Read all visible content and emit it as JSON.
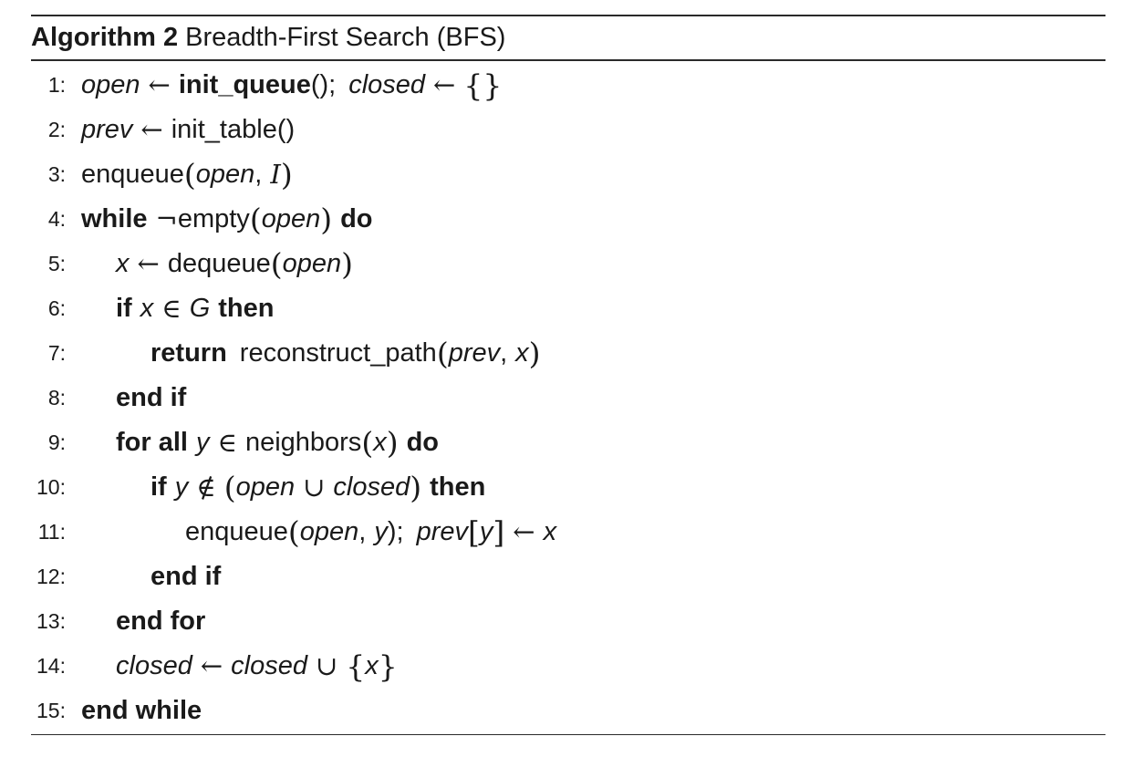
{
  "algorithm": {
    "label": "Algorithm 2",
    "title": "Breadth-First Search (BFS)"
  },
  "lines": {
    "1": {
      "num": "1:",
      "open": "open",
      "arrow": "←",
      "init_queue": "init_queue",
      "call": "();",
      "closed": "closed",
      "arrow2": "←",
      "empty_set": "{}"
    },
    "2": {
      "num": "2:",
      "prev": "prev",
      "arrow": "←",
      "init_table": "init_table",
      "call": "()"
    },
    "3": {
      "num": "3:",
      "enqueue": "enqueue",
      "lp": "(",
      "open": "open",
      "comma": ",",
      "I": "I",
      "rp": ")"
    },
    "4": {
      "num": "4:",
      "while": "while",
      "neg": "¬",
      "empty": "empty",
      "lp": "(",
      "open": "open",
      "rp": ")",
      "do": "do"
    },
    "5": {
      "num": "5:",
      "x": "x",
      "arrow": "←",
      "dequeue": "dequeue",
      "lp": "(",
      "open": "open",
      "rp": ")"
    },
    "6": {
      "num": "6:",
      "if": "if",
      "x": "x",
      "in": "∈",
      "G": "G",
      "then": "then"
    },
    "7": {
      "num": "7:",
      "return": "return",
      "reconstruct_path": "reconstruct_path",
      "lp": "(",
      "prev": "prev",
      "comma": ",",
      "x": "x",
      "rp": ")"
    },
    "8": {
      "num": "8:",
      "end_if": "end if"
    },
    "9": {
      "num": "9:",
      "for_all": "for all",
      "y": "y",
      "in": "∈",
      "neighbors": "neighbors",
      "lp": "(",
      "x": "x",
      "rp": ")",
      "do": "do"
    },
    "10": {
      "num": "10:",
      "if": "if",
      "y": "y",
      "notin": "∉",
      "lp": "(",
      "open": "open",
      "cup": "∪",
      "closed": "closed",
      "rp": ")",
      "then": "then"
    },
    "11": {
      "num": "11:",
      "enqueue": "enqueue",
      "lp": "(",
      "open": "open",
      "comma": ",",
      "y": "y",
      "rp": ");",
      "prev": "prev",
      "lb": "[",
      "y2": "y",
      "rb": "]",
      "arrow": "←",
      "x": "x"
    },
    "12": {
      "num": "12:",
      "end_if": "end if"
    },
    "13": {
      "num": "13:",
      "end_for": "end for"
    },
    "14": {
      "num": "14:",
      "closed": "closed",
      "arrow": "←",
      "closed2": "closed",
      "cup": "∪",
      "lb": "{",
      "x": "x",
      "rb": "}"
    },
    "15": {
      "num": "15:",
      "end_while": "end while"
    }
  }
}
